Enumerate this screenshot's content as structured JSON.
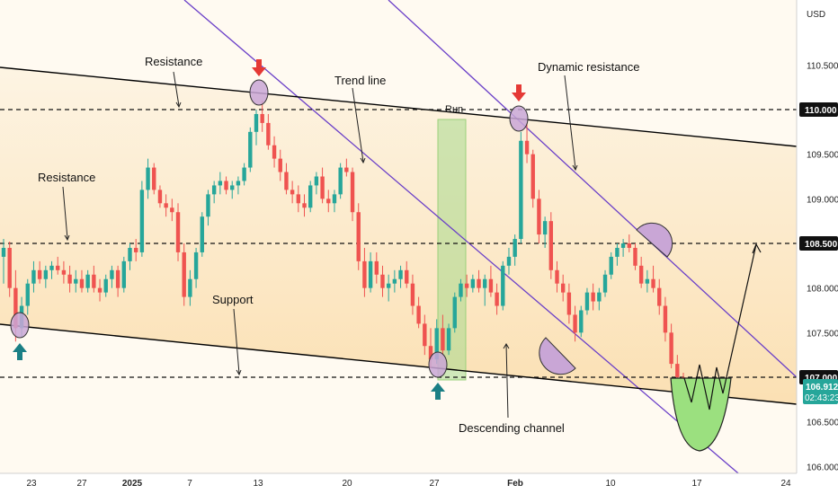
{
  "chart_data": {
    "type": "candlestick",
    "currency": "USD",
    "y_ticks": [
      "110.500",
      "110.000",
      "109.500",
      "109.000",
      "108.500",
      "108.000",
      "107.500",
      "107.000",
      "106.500",
      "106.000"
    ],
    "x_ticks": [
      "23",
      "27",
      "2025",
      "7",
      "13",
      "20",
      "27",
      "Feb",
      "10",
      "17",
      "24"
    ],
    "ylim": [
      106.0,
      111.25
    ],
    "levels": [
      {
        "price": 110.0,
        "label": "110.000",
        "highlight": true
      },
      {
        "price": 108.5,
        "label": "108.500",
        "highlight": true
      },
      {
        "price": 107.0,
        "label": "107.000",
        "highlight": true
      }
    ],
    "last_price": {
      "price": "106.912",
      "countdown": "02:43:23",
      "color": "#26a69a"
    },
    "annotations": {
      "resistance_top": "Resistance",
      "resistance_mid": "Resistance",
      "trend_line": "Trend line",
      "dynamic_resistance": "Dynamic resistance",
      "support": "Support",
      "descending_channel": "Descending channel",
      "run": "Run"
    },
    "colors": {
      "up": "#26a69a",
      "down": "#ef5350",
      "channel_fill": "#fde9c4",
      "trend_line": "#6a3fc8",
      "marker_circle": "#c9a6d6",
      "arrow_down": "#e53935",
      "arrow_up": "#1b7f85",
      "projection_fill": "#9be07f",
      "green_zone": "#a8d98c"
    },
    "candles": [
      [
        108.35,
        108.55,
        108.05,
        108.45
      ],
      [
        108.45,
        108.52,
        107.9,
        108.0
      ],
      [
        108.0,
        108.2,
        107.4,
        107.55
      ],
      [
        107.55,
        107.9,
        107.45,
        107.8
      ],
      [
        107.8,
        108.1,
        107.7,
        108.05
      ],
      [
        108.05,
        108.3,
        107.95,
        108.2
      ],
      [
        108.2,
        108.3,
        108.05,
        108.1
      ],
      [
        108.1,
        108.25,
        108.0,
        108.2
      ],
      [
        108.2,
        108.3,
        108.1,
        108.25
      ],
      [
        108.25,
        108.35,
        108.15,
        108.2
      ],
      [
        108.2,
        108.3,
        108.05,
        108.15
      ],
      [
        108.15,
        108.25,
        107.95,
        108.05
      ],
      [
        108.05,
        108.2,
        107.95,
        108.1
      ],
      [
        108.1,
        108.2,
        107.95,
        108.0
      ],
      [
        108.0,
        108.2,
        107.95,
        108.15
      ],
      [
        108.15,
        108.25,
        107.95,
        108.0
      ],
      [
        108.0,
        108.1,
        107.85,
        107.95
      ],
      [
        107.95,
        108.15,
        107.9,
        108.1
      ],
      [
        108.1,
        108.25,
        108.0,
        108.2
      ],
      [
        108.2,
        108.25,
        107.9,
        108.0
      ],
      [
        108.0,
        108.35,
        107.95,
        108.3
      ],
      [
        108.3,
        108.5,
        108.2,
        108.45
      ],
      [
        108.45,
        108.55,
        108.3,
        108.4
      ],
      [
        108.4,
        109.2,
        108.35,
        109.1
      ],
      [
        109.1,
        109.45,
        109.0,
        109.35
      ],
      [
        109.35,
        109.4,
        109.05,
        109.1
      ],
      [
        109.1,
        109.15,
        108.9,
        108.95
      ],
      [
        108.95,
        109.05,
        108.8,
        108.9
      ],
      [
        108.9,
        109.0,
        108.75,
        108.85
      ],
      [
        108.85,
        108.95,
        108.3,
        108.4
      ],
      [
        108.4,
        108.5,
        107.8,
        107.9
      ],
      [
        107.9,
        108.2,
        107.8,
        108.1
      ],
      [
        108.1,
        108.45,
        108.0,
        108.4
      ],
      [
        108.4,
        108.85,
        108.35,
        108.8
      ],
      [
        108.8,
        109.1,
        108.7,
        109.05
      ],
      [
        109.05,
        109.2,
        108.95,
        109.15
      ],
      [
        109.15,
        109.3,
        109.05,
        109.2
      ],
      [
        109.2,
        109.25,
        109.05,
        109.1
      ],
      [
        109.1,
        109.2,
        109.0,
        109.15
      ],
      [
        109.15,
        109.25,
        109.05,
        109.2
      ],
      [
        109.2,
        109.4,
        109.15,
        109.35
      ],
      [
        109.35,
        109.8,
        109.3,
        109.75
      ],
      [
        109.75,
        110.0,
        109.6,
        109.95
      ],
      [
        109.95,
        110.1,
        109.75,
        109.85
      ],
      [
        109.85,
        109.95,
        109.55,
        109.6
      ],
      [
        109.6,
        109.7,
        109.35,
        109.45
      ],
      [
        109.45,
        109.55,
        109.2,
        109.3
      ],
      [
        109.3,
        109.4,
        109.05,
        109.1
      ],
      [
        109.1,
        109.2,
        108.95,
        109.05
      ],
      [
        109.05,
        109.15,
        108.85,
        108.95
      ],
      [
        108.95,
        109.05,
        108.8,
        108.9
      ],
      [
        108.9,
        109.2,
        108.85,
        109.15
      ],
      [
        109.15,
        109.3,
        109.05,
        109.25
      ],
      [
        109.25,
        109.35,
        108.95,
        109.0
      ],
      [
        109.0,
        109.1,
        108.85,
        108.95
      ],
      [
        108.95,
        109.1,
        108.85,
        109.05
      ],
      [
        109.05,
        109.4,
        109.0,
        109.35
      ],
      [
        109.35,
        109.45,
        109.25,
        109.3
      ],
      [
        109.3,
        109.35,
        108.75,
        108.85
      ],
      [
        108.85,
        108.95,
        108.2,
        108.3
      ],
      [
        108.3,
        108.45,
        107.9,
        108.0
      ],
      [
        108.0,
        108.4,
        107.95,
        108.3
      ],
      [
        108.3,
        108.4,
        108.05,
        108.15
      ],
      [
        108.15,
        108.25,
        107.9,
        108.0
      ],
      [
        108.0,
        108.15,
        107.85,
        108.05
      ],
      [
        108.05,
        108.2,
        107.95,
        108.1
      ],
      [
        108.1,
        108.25,
        108.0,
        108.2
      ],
      [
        108.2,
        108.3,
        108.0,
        108.05
      ],
      [
        108.05,
        108.15,
        107.7,
        107.8
      ],
      [
        107.8,
        107.9,
        107.55,
        107.6
      ],
      [
        107.6,
        107.7,
        107.25,
        107.35
      ],
      [
        107.35,
        107.55,
        107.1,
        107.2
      ],
      [
        107.2,
        107.65,
        107.15,
        107.55
      ],
      [
        107.55,
        107.7,
        107.25,
        107.3
      ],
      [
        107.3,
        107.6,
        107.25,
        107.55
      ],
      [
        107.55,
        107.95,
        107.5,
        107.9
      ],
      [
        107.9,
        108.1,
        107.85,
        108.05
      ],
      [
        108.05,
        108.15,
        107.9,
        108.0
      ],
      [
        108.0,
        108.15,
        107.95,
        108.1
      ],
      [
        108.1,
        108.2,
        107.95,
        108.0
      ],
      [
        108.0,
        108.15,
        107.8,
        108.1
      ],
      [
        108.1,
        108.25,
        107.9,
        107.95
      ],
      [
        107.95,
        108.05,
        107.7,
        107.8
      ],
      [
        107.8,
        108.3,
        107.75,
        108.25
      ],
      [
        108.25,
        108.45,
        108.15,
        108.35
      ],
      [
        108.35,
        108.6,
        108.25,
        108.55
      ],
      [
        108.55,
        109.75,
        108.5,
        109.65
      ],
      [
        109.65,
        109.85,
        109.4,
        109.5
      ],
      [
        109.5,
        109.55,
        108.9,
        109.0
      ],
      [
        109.0,
        109.1,
        108.5,
        108.6
      ],
      [
        108.6,
        108.8,
        108.45,
        108.75
      ],
      [
        108.75,
        108.85,
        108.1,
        108.2
      ],
      [
        108.2,
        108.3,
        107.95,
        108.05
      ],
      [
        108.05,
        108.15,
        107.85,
        107.95
      ],
      [
        107.95,
        108.05,
        107.6,
        107.7
      ],
      [
        107.7,
        107.8,
        107.4,
        107.5
      ],
      [
        107.5,
        107.8,
        107.45,
        107.75
      ],
      [
        107.75,
        108.0,
        107.7,
        107.95
      ],
      [
        107.95,
        108.05,
        107.75,
        107.85
      ],
      [
        107.85,
        108.0,
        107.75,
        107.95
      ],
      [
        107.95,
        108.2,
        107.9,
        108.15
      ],
      [
        108.15,
        108.4,
        108.1,
        108.35
      ],
      [
        108.35,
        108.5,
        108.25,
        108.45
      ],
      [
        108.45,
        108.55,
        108.35,
        108.5
      ],
      [
        108.5,
        108.6,
        108.4,
        108.45
      ],
      [
        108.45,
        108.5,
        108.2,
        108.25
      ],
      [
        108.25,
        108.35,
        108.0,
        108.05
      ],
      [
        108.05,
        108.2,
        107.95,
        108.1
      ],
      [
        108.1,
        108.25,
        107.95,
        108.0
      ],
      [
        108.0,
        108.1,
        107.7,
        107.8
      ],
      [
        107.8,
        107.9,
        107.4,
        107.5
      ],
      [
        107.5,
        107.6,
        107.1,
        107.15
      ],
      [
        107.15,
        107.25,
        106.95,
        107.0
      ],
      [
        107.0,
        107.05,
        106.85,
        106.91
      ]
    ],
    "projection": {
      "points": [
        [
          761,
          421
        ],
        [
          769,
          448
        ],
        [
          778,
          406
        ],
        [
          789,
          456
        ],
        [
          797,
          409
        ],
        [
          804,
          438
        ]
      ],
      "target": [
        841,
        272
      ]
    }
  }
}
